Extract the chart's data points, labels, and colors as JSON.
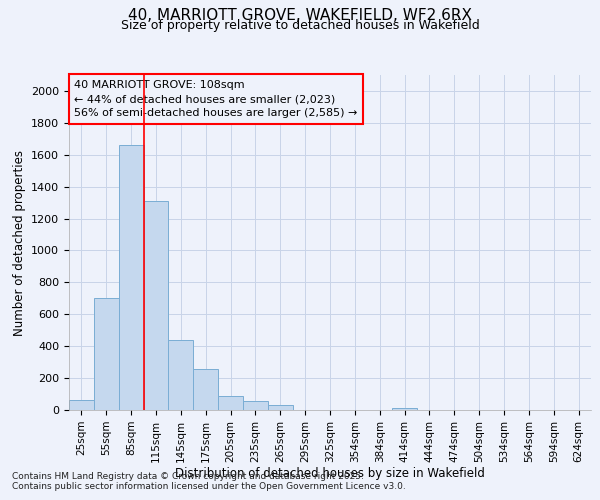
{
  "title_line1": "40, MARRIOTT GROVE, WAKEFIELD, WF2 6RX",
  "title_line2": "Size of property relative to detached houses in Wakefield",
  "xlabel": "Distribution of detached houses by size in Wakefield",
  "ylabel": "Number of detached properties",
  "categories": [
    "25sqm",
    "55sqm",
    "85sqm",
    "115sqm",
    "145sqm",
    "175sqm",
    "205sqm",
    "235sqm",
    "265sqm",
    "295sqm",
    "325sqm",
    "354sqm",
    "384sqm",
    "414sqm",
    "444sqm",
    "474sqm",
    "504sqm",
    "534sqm",
    "564sqm",
    "594sqm",
    "624sqm"
  ],
  "values": [
    65,
    700,
    1660,
    1310,
    440,
    255,
    90,
    55,
    30,
    0,
    0,
    0,
    0,
    15,
    0,
    0,
    0,
    0,
    0,
    0,
    0
  ],
  "bar_color": "#c5d8ee",
  "bar_edge_color": "#7aadd4",
  "background_color": "#eef2fb",
  "grid_color": "#c8d4e8",
  "red_line_x": 2.5,
  "annotation_text_line1": "40 MARRIOTT GROVE: 108sqm",
  "annotation_text_line2": "← 44% of detached houses are smaller (2,023)",
  "annotation_text_line3": "56% of semi-detached houses are larger (2,585) →",
  "ylim": [
    0,
    2100
  ],
  "yticks": [
    0,
    200,
    400,
    600,
    800,
    1000,
    1200,
    1400,
    1600,
    1800,
    2000
  ],
  "footnote1": "Contains HM Land Registry data © Crown copyright and database right 2025.",
  "footnote2": "Contains public sector information licensed under the Open Government Licence v3.0."
}
